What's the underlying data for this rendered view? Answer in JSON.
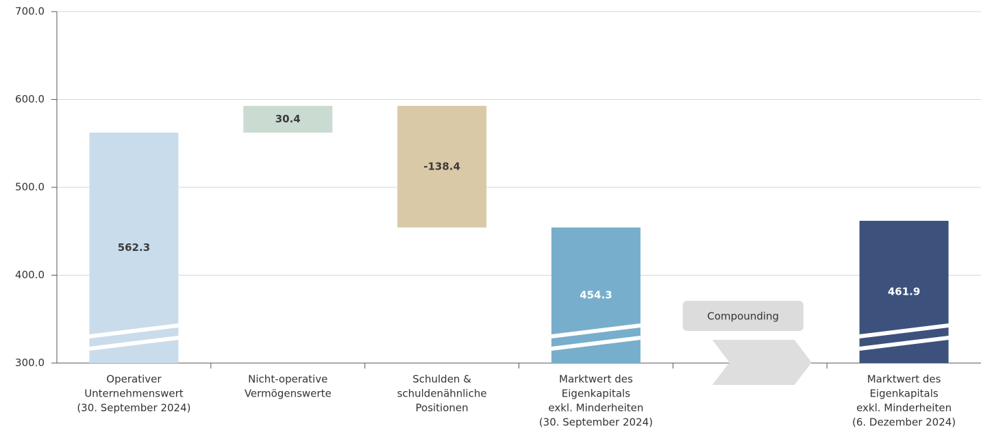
{
  "chart_data": {
    "type": "waterfall",
    "categories": [
      [
        "Operativer",
        "Unternehmenswert",
        "(30. September 2024)"
      ],
      [
        "Nicht-operative",
        "Vermögenswerte"
      ],
      [
        "Schulden &",
        "schuldenähnliche",
        "Positionen"
      ],
      [
        "Marktwert des",
        "Eigenkapitals",
        "exkl. Minderheiten",
        "(30. September 2024)"
      ],
      null,
      [
        "Marktwert des",
        "Eigenkapitals",
        "exkl. Minderheiten",
        "(6. Dezember 2024)"
      ]
    ],
    "values": [
      562.3,
      30.4,
      -138.4,
      454.3,
      null,
      461.9
    ],
    "measure": [
      "absolute",
      "relative",
      "relative",
      "absolute",
      null,
      "absolute"
    ],
    "colors": [
      "#c9dceb",
      "#cadbd2",
      "#d9c9a7",
      "#77aecb",
      null,
      "#3c527c"
    ],
    "label_colors": [
      "#3b3b3b",
      "#3b3b3b",
      "#3b3b3b",
      "#ffffff",
      null,
      "#ffffff"
    ],
    "annotation": "Compounding",
    "ylim": [
      300,
      700
    ],
    "yticks": [
      {
        "value": 300,
        "label": "300.0"
      },
      {
        "value": 400,
        "label": "400.0"
      },
      {
        "value": 500,
        "label": "500.0"
      },
      {
        "value": 600,
        "label": "600.0"
      },
      {
        "value": 700,
        "label": "700.0"
      }
    ],
    "grid": true
  }
}
